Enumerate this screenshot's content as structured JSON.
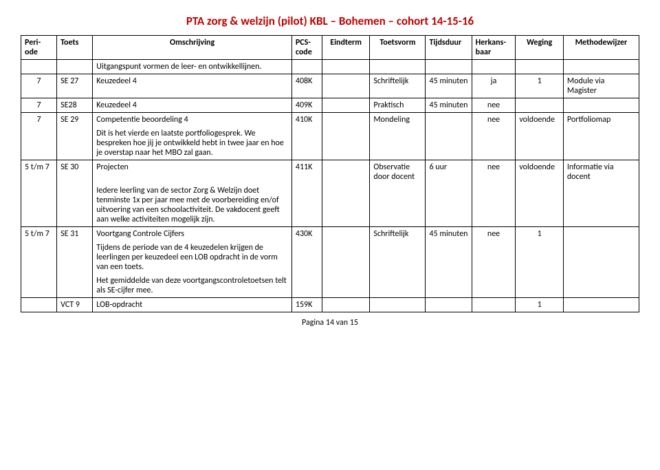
{
  "title": "PTA zorg & welzijn (pilot) KBL – Bohemen – cohort 14-15-16",
  "headers": {
    "periode": "Peri-ode",
    "toets": "Toets",
    "omschrijving": "Omschrijving",
    "pcs": "PCS-code",
    "eindterm": "Eindterm",
    "toetsvorm": "Toetsvorm",
    "tijdsduur": "Tijdsduur",
    "herkansbaar": "Herkans-baar",
    "weging": "Weging",
    "methodewijzer": "Methodewijzer"
  },
  "r0": {
    "omschrijving": "Uitgangspunt vormen de leer- en ontwikkellijnen."
  },
  "r1": {
    "periode": "7",
    "toets": "SE 27",
    "omschrijving": "Keuzedeel 4",
    "pcs": "408K",
    "toetsvorm": "Schriftelijk",
    "tijdsduur": "45 minuten",
    "herkans": "ja",
    "weging": "1",
    "methode": "Module via Magister"
  },
  "r2": {
    "periode": "7",
    "toets": "SE28",
    "omschrijving": "Keuzedeel 4",
    "pcs": "409K",
    "toetsvorm": "Praktisch",
    "tijdsduur": "45 minuten",
    "herkans": "nee"
  },
  "r3": {
    "periode": "7",
    "toets": "SE 29",
    "omschrijving": "Competentie beoordeling 4",
    "pcs": "410K",
    "toetsvorm": "Mondeling",
    "herkans": "nee",
    "weging": "voldoende",
    "methode": "Portfoliomap"
  },
  "r3b": {
    "omschrijving": "Dit is het vierde en laatste portfoliogesprek. We bespreken hoe jij je ontwikkeld hebt in twee jaar en hoe je overstap naar het MBO zal gaan."
  },
  "r4": {
    "periode": "5 t/m 7",
    "toets": "SE 30",
    "title": "Projecten",
    "pcs": "411K",
    "toetsvorm": "Observatie door docent",
    "tijdsduur": "6 uur",
    "herkans": "nee",
    "weging": "voldoende",
    "methode": "Informatie via docent"
  },
  "r4b": {
    "omschrijving": "Iedere leerling van de sector Zorg & Welzijn doet tenminste 1x per jaar mee met de voorbereiding en/of uitvoering van een schoolactiviteit. De vakdocent geeft aan welke activiteiten mogelijk zijn."
  },
  "r5": {
    "periode": "5 t/m 7",
    "toets": "SE 31",
    "title": "Voortgang Controle Cijfers",
    "pcs": "430K",
    "toetsvorm": "Schriftelijk",
    "tijdsduur": "45 minuten",
    "herkans": "nee",
    "weging": "1"
  },
  "r5b": {
    "omschrijving": "Tijdens de periode van de 4 keuzedelen krijgen de leerlingen per keuzedeel een LOB opdracht in de vorm van een toets."
  },
  "r5c": {
    "omschrijving": "Het gemiddelde van deze voortgangscontroletoetsen telt als SE-cijfer mee."
  },
  "r6": {
    "toets": "VCT 9",
    "omschrijving": "LOB-opdracht",
    "pcs": "159K",
    "weging": "1"
  },
  "footer": "Pagina 14 van 15"
}
